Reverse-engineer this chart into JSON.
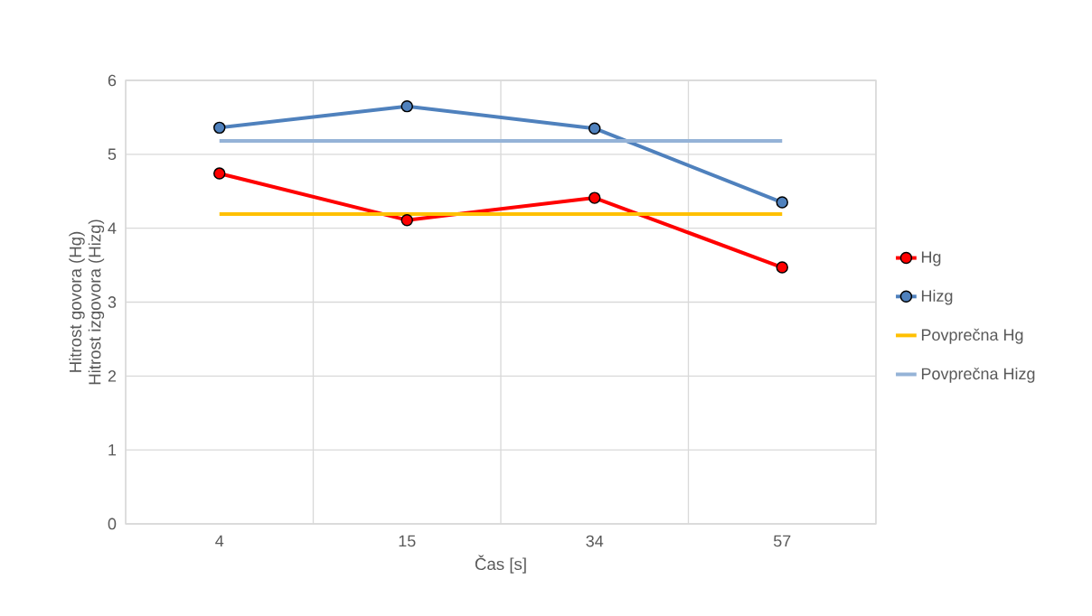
{
  "chart_data": {
    "type": "line",
    "xlabel": "Čas [s]",
    "ylabel": [
      "Hitrost govora (Hg)",
      "Hitrost izgovora (Hizg)"
    ],
    "categories": [
      "4",
      "15",
      "34",
      "57"
    ],
    "series": [
      {
        "name": "Hg",
        "color": "#ff0000",
        "values": [
          4.74,
          4.11,
          4.41,
          3.47
        ],
        "marker": "circle"
      },
      {
        "name": "Hizg",
        "color": "#4f81bd",
        "values": [
          5.36,
          5.65,
          5.35,
          4.35
        ],
        "marker": "circle"
      },
      {
        "name": "Povprečna Hg",
        "color": "#ffc000",
        "values": [
          4.19,
          4.19,
          4.19,
          4.19
        ],
        "marker": "none"
      },
      {
        "name": "Povprečna Hizg",
        "color": "#95b3d7",
        "values": [
          5.18,
          5.18,
          5.18,
          5.18
        ],
        "marker": "none"
      }
    ],
    "ylim": [
      0,
      6
    ],
    "yticks": [
      0,
      1,
      2,
      3,
      4,
      5,
      6
    ],
    "grid": true,
    "legend": "right",
    "line_style": "solid"
  }
}
